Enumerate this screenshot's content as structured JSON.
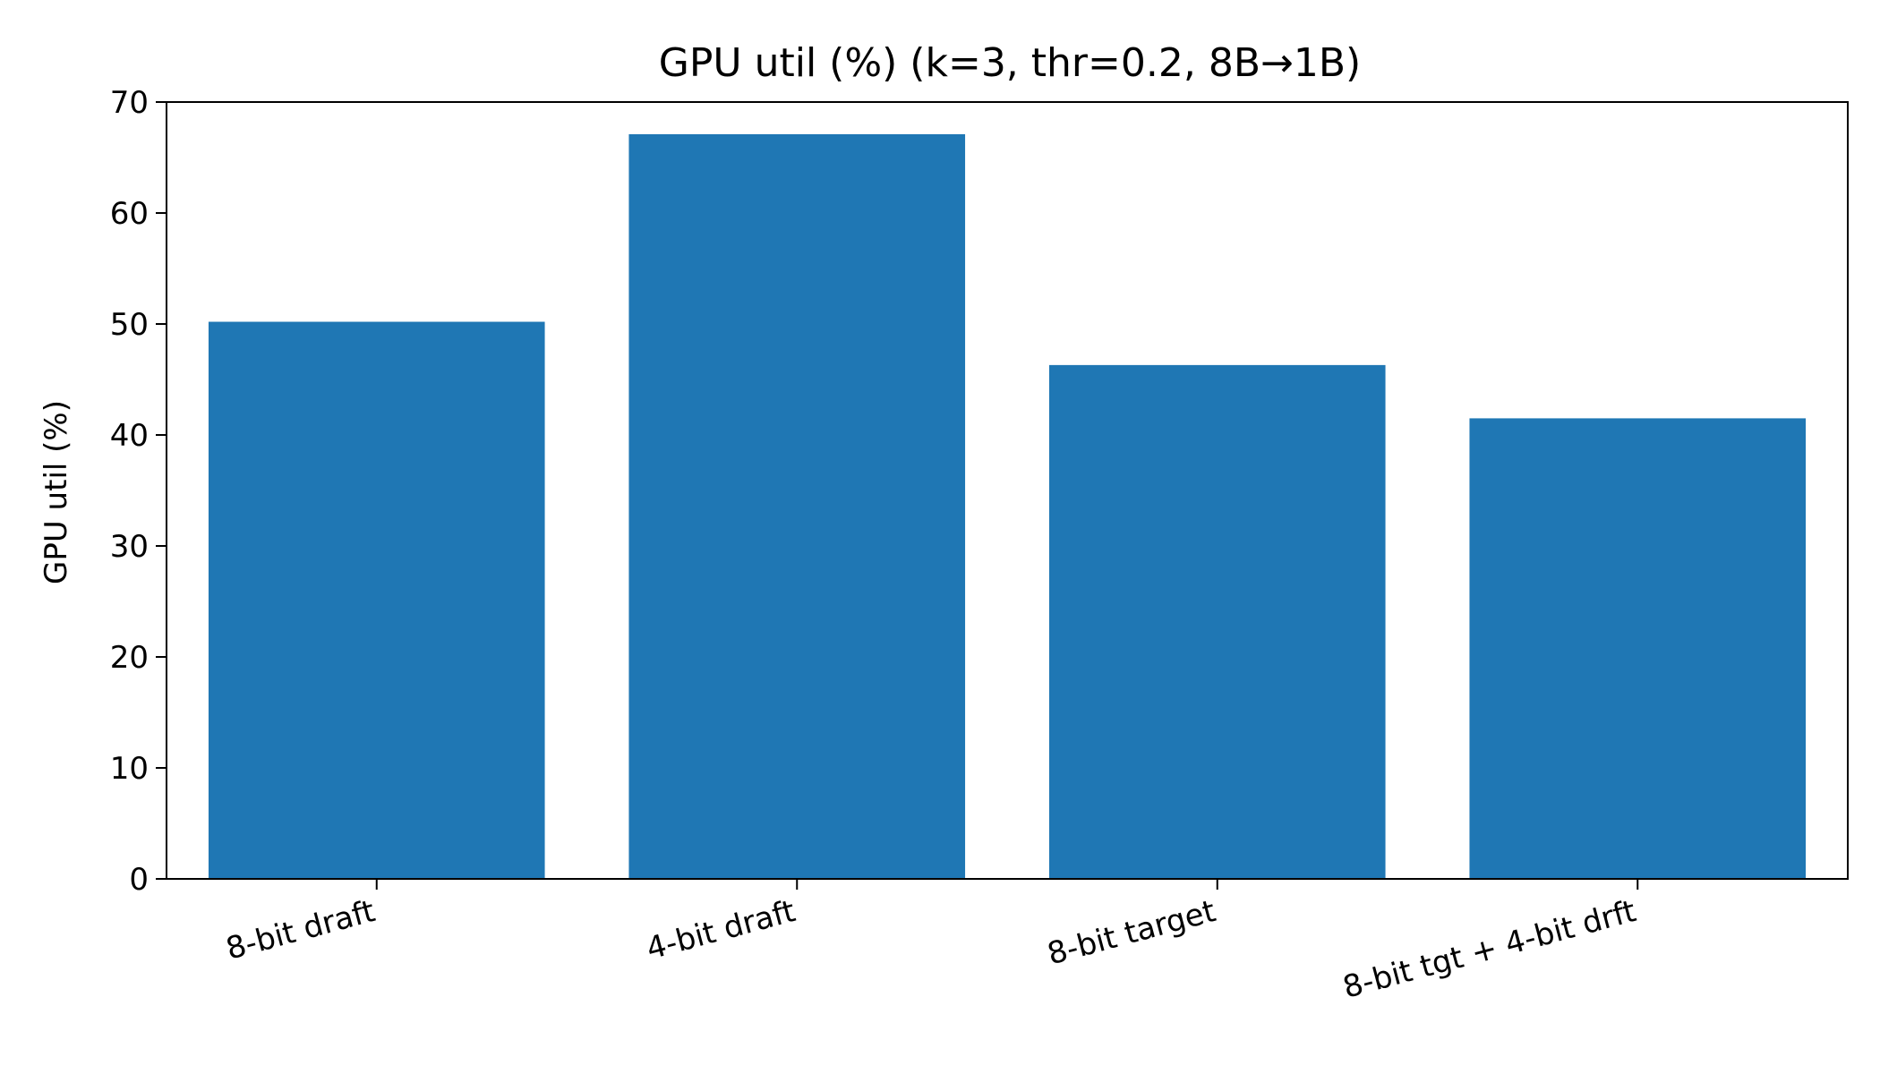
{
  "chart_data": {
    "type": "bar",
    "title": "GPU util (%) (k=3, thr=0.2, 8B→1B)",
    "xlabel": "",
    "ylabel": "GPU util (%)",
    "categories": [
      "8-bit draft",
      "4-bit draft",
      "8-bit target",
      "8-bit tgt + 4-bit drft"
    ],
    "values": [
      50.2,
      67.1,
      46.3,
      41.5
    ],
    "ylim": [
      0,
      70
    ],
    "yticks": [
      0,
      10,
      20,
      30,
      40,
      50,
      60,
      70
    ],
    "ytick_labels": [
      "0",
      "10",
      "20",
      "30",
      "40",
      "50",
      "60",
      "70"
    ],
    "bar_color": "#1f77b4",
    "grid": false,
    "legend": null
  }
}
